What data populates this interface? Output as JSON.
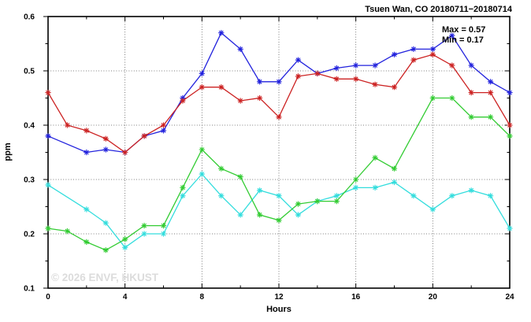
{
  "title": "Tsuen Wan, CO 20180711−20180714",
  "watermark": "© 2026 ENVF, HKUST",
  "colors": {
    "background": "#ffffff",
    "axis": "#000000",
    "grid": "#555555",
    "watermark": "#dcdcdc",
    "series_blue": "#2222dd",
    "series_red": "#cc2222",
    "series_green": "#33cc33",
    "series_cyan": "#33dddd"
  },
  "chart_data": {
    "type": "line",
    "title": "Tsuen Wan, CO 20180711−20180714",
    "xlabel": "Hours",
    "ylabel": "ppm",
    "xlim": [
      0,
      24
    ],
    "ylim": [
      0.1,
      0.6
    ],
    "grid": "dotted lines at major ticks",
    "legend_position": "none",
    "marker": "asterisk",
    "annotations": [
      "Max = 0.57",
      "Min = 0.17"
    ],
    "max_value": 0.57,
    "min_value": 0.17,
    "x": [
      0,
      1,
      2,
      3,
      4,
      5,
      6,
      7,
      8,
      9,
      10,
      11,
      12,
      13,
      14,
      15,
      16,
      17,
      18,
      19,
      20,
      21,
      22,
      23,
      24
    ],
    "x_major_ticks": [
      0,
      4,
      8,
      12,
      16,
      20,
      24
    ],
    "x_major_labels": [
      "0",
      "4",
      "8",
      "12",
      "16",
      "20",
      "24"
    ],
    "x_minor_ticks": [
      2,
      6,
      10,
      14,
      18,
      22
    ],
    "x_grid": [
      4,
      8,
      12,
      16,
      20
    ],
    "y_major_ticks": [
      0.1,
      0.2,
      0.3,
      0.4,
      0.5,
      0.6
    ],
    "y_major_labels": [
      "0.1",
      "0.2",
      "0.3",
      "0.4",
      "0.5",
      "0.6"
    ],
    "y_minor_ticks": [
      0.15,
      0.25,
      0.35,
      0.45,
      0.55
    ],
    "y_grid": [
      0.2,
      0.3,
      0.4,
      0.5
    ],
    "series": [
      {
        "name": "blue-series",
        "color": "#2222dd",
        "values": [
          0.38,
          null,
          0.35,
          0.355,
          0.35,
          0.38,
          0.39,
          0.45,
          0.495,
          0.57,
          0.54,
          0.48,
          0.48,
          0.52,
          0.495,
          0.505,
          0.51,
          0.51,
          0.53,
          0.54,
          0.54,
          0.565,
          0.51,
          0.48,
          0.46
        ]
      },
      {
        "name": "cyan-series",
        "color": "#33dddd",
        "values": [
          0.29,
          null,
          0.245,
          0.22,
          0.175,
          0.2,
          0.2,
          0.27,
          0.31,
          0.27,
          0.235,
          0.28,
          0.27,
          0.235,
          0.26,
          0.27,
          0.285,
          0.285,
          0.295,
          0.27,
          0.245,
          0.27,
          0.28,
          0.27,
          0.21
        ]
      },
      {
        "name": "green-series",
        "color": "#33cc33",
        "values": [
          0.21,
          0.205,
          0.185,
          0.17,
          0.19,
          0.215,
          0.215,
          0.285,
          0.355,
          0.32,
          0.305,
          0.235,
          0.225,
          0.255,
          0.26,
          0.26,
          0.3,
          0.34,
          0.32,
          null,
          0.45,
          0.45,
          0.415,
          0.415,
          0.38
        ]
      },
      {
        "name": "red-series",
        "color": "#cc2222",
        "values": [
          0.46,
          0.4,
          0.39,
          0.375,
          0.35,
          0.38,
          0.4,
          0.445,
          0.47,
          0.47,
          0.445,
          0.45,
          0.415,
          0.49,
          0.495,
          0.485,
          0.485,
          0.475,
          0.47,
          0.52,
          0.53,
          0.51,
          0.46,
          0.46,
          0.4
        ]
      }
    ]
  }
}
